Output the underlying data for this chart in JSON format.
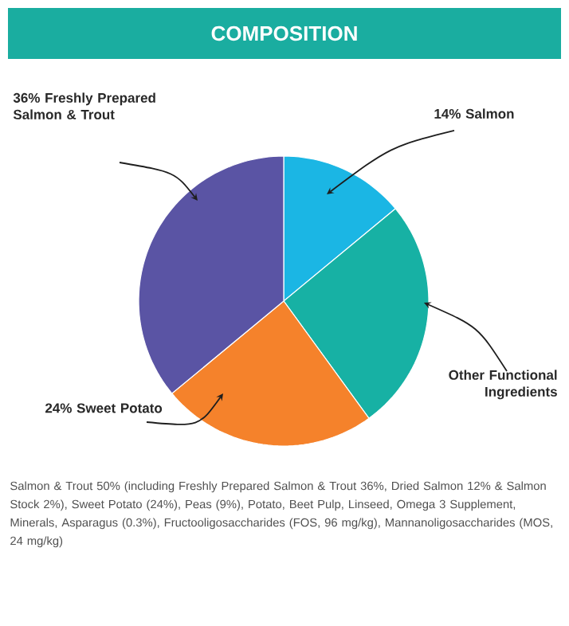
{
  "chart_data": {
    "type": "pie",
    "title": "COMPOSITION",
    "categories": [
      "Salmon",
      "Other Functional Ingredients",
      "Sweet Potato",
      "Freshly Prepared Salmon & Trout"
    ],
    "values": [
      14,
      26,
      24,
      36
    ],
    "value_labels": [
      "14%",
      null,
      "24%",
      "36%"
    ],
    "colors": [
      "#1bb6e4",
      "#17b1a4",
      "#f5822b",
      "#5a54a4"
    ],
    "annotations": [
      "Salmon & Trout 50% (including Freshly Prepared Salmon & Trout 36%, Dried Salmon 12%  & Salmon Stock 2%), Sweet Potato (24%), Peas (9%), Potato, Beet Pulp, Linseed, Omega 3 Supplement, Minerals, Asparagus (0.3%), Fructooligosaccharides (FOS, 96 mg/kg),  Mannanoligosaccharides (MOS, 24 mg/kg)"
    ]
  }
}
